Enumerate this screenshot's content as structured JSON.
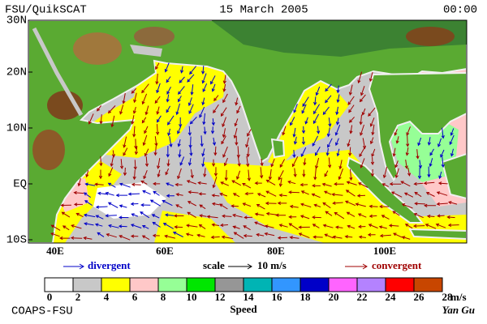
{
  "header": {
    "title": "FSU/QuikSCAT",
    "date": "15 March 2005",
    "time": "00:00"
  },
  "map": {
    "lat_labels": [
      "30N",
      "20N",
      "10N",
      "EQ",
      "10S"
    ],
    "lon_labels": [
      "40E",
      "60E",
      "80E",
      "100E"
    ]
  },
  "legend": {
    "divergent": "divergent",
    "scale": "scale",
    "scale_value": "10 m/s",
    "convergent": "convergent",
    "speed_ticks": [
      0,
      2,
      4,
      6,
      8,
      10,
      12,
      14,
      16,
      18,
      20,
      22,
      24,
      26,
      28
    ],
    "unit": "m/s",
    "title": "Speed",
    "colors": [
      "#ffffff",
      "#c8c8c8",
      "#ffff00",
      "#ffc8c8",
      "#96ff96",
      "#00e600",
      "#969696",
      "#00b4b4",
      "#3296ff",
      "#0000c8",
      "#ff64ff",
      "#b482ff",
      "#ff0000",
      "#c84600"
    ]
  },
  "footer": {
    "left": "COAPS-FSU",
    "right": "Yan Gu"
  }
}
